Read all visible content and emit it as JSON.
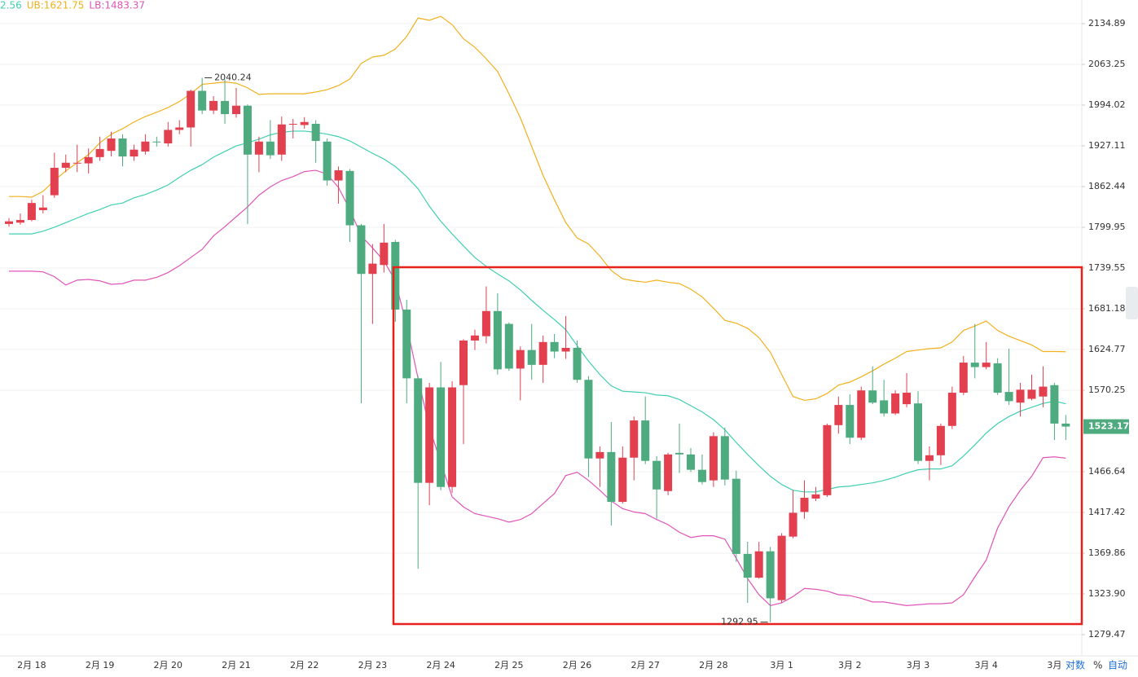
{
  "chart_data": {
    "type": "candlestick",
    "log_y": true,
    "grid": true,
    "up_color": "#e2404f",
    "down_color": "#4dab7f",
    "ylim": [
      1256.96,
      2177.6
    ],
    "yticks": [
      2134.89,
      2063.25,
      1994.02,
      1927.11,
      1862.44,
      1799.95,
      1739.55,
      1681.18,
      1624.77,
      1570.25,
      1466.64,
      1417.42,
      1369.86,
      {
        "value": 1323.9,
        "label": "1323.90"
      },
      1279.47
    ],
    "categories": [
      null,
      null,
      "2月 18",
      null,
      null,
      null,
      null,
      null,
      "2月 19",
      null,
      null,
      null,
      null,
      null,
      "2月 20",
      null,
      null,
      null,
      null,
      null,
      "2月 21",
      null,
      null,
      null,
      null,
      null,
      "2月 22",
      null,
      null,
      null,
      null,
      null,
      "2月 23",
      null,
      null,
      null,
      null,
      null,
      "2月 24",
      null,
      null,
      null,
      null,
      null,
      "2月 25",
      null,
      null,
      null,
      null,
      null,
      "2月 26",
      null,
      null,
      null,
      null,
      null,
      "2月 27",
      null,
      null,
      null,
      null,
      null,
      "2月 28",
      null,
      null,
      null,
      null,
      null,
      "3月 1",
      null,
      null,
      null,
      null,
      null,
      "3月 2",
      null,
      null,
      null,
      null,
      null,
      "3月 3",
      null,
      null,
      null,
      null,
      null,
      "3月 4",
      null,
      null,
      null,
      null,
      null,
      "3月",
      null
    ],
    "open": [
      1805,
      1807,
      1811,
      1826,
      1849,
      1892,
      1899,
      1899,
      1909,
      1919,
      1939,
      1910,
      1918,
      1934,
      1931,
      1953,
      1957,
      2018,
      1985,
      2001,
      1979,
      1993,
      1913,
      1934,
      1913,
      1962,
      1961,
      1963,
      1934,
      1872,
      1887,
      1803,
      1731,
      1744,
      1778,
      1680,
      1586,
      1453,
      1574,
      1448,
      1577,
      1637,
      1643,
      1678,
      1660,
      1599,
      1624,
      1604,
      1635,
      1622,
      1627,
      1584,
      1483,
      1491,
      1430,
      1484,
      1531,
      1480,
      1443,
      1490,
      1488,
      1469,
      1456,
      1511,
      1458,
      1369,
      1342,
      1372,
      1317,
      1389,
      1418,
      1434,
      1438,
      1525,
      1551,
      1509,
      1570,
      1557,
      1540,
      1552,
      1553,
      1480,
      1487,
      1524,
      1567,
      1607,
      1601,
      1606,
      1568,
      1554,
      1559,
      1562,
      1577,
      1527
    ],
    "high": [
      1814,
      1821,
      1842,
      1849,
      1916,
      1913,
      1929,
      1923,
      1942,
      1950,
      1946,
      1929,
      1946,
      1942,
      1966,
      1969,
      2020,
      2040.24,
      2009,
      2037,
      2023,
      1995,
      1942,
      1969,
      1975,
      1971,
      1974,
      1969,
      1939,
      1894,
      1890,
      1805,
      1775,
      1805,
      1781,
      1694,
      1589,
      1580,
      1608,
      1582,
      1639,
      1652,
      1713,
      1703,
      1662,
      1629,
      1660,
      1644,
      1646,
      1671,
      1637,
      1589,
      1498,
      1529,
      1498,
      1536,
      1562,
      1486,
      1490,
      1527,
      1496,
      1488,
      1516,
      1522,
      1468,
      1383,
      1383,
      1377,
      1393,
      1444,
      1456,
      1448,
      1527,
      1562,
      1565,
      1575,
      1602,
      1584,
      1570,
      1593,
      1569,
      1498,
      1527,
      1575,
      1616,
      1660,
      1635,
      1613,
      1626,
      1580,
      1591,
      1602,
      1580,
      1538
    ],
    "low": [
      1801,
      1804,
      1809,
      1821,
      1845,
      1885,
      1885,
      1883,
      1903,
      1910,
      1894,
      1903,
      1913,
      1926,
      1926,
      1946,
      1926,
      1979,
      1979,
      1963,
      1973,
      1805,
      1885,
      1906,
      1903,
      1939,
      1955,
      1900,
      1864,
      1836,
      1778,
      1553,
      1660,
      1733,
      1663,
      1553,
      1352,
      1426,
      1444,
      1441,
      1501,
      1624,
      1633,
      1591,
      1596,
      1557,
      1584,
      1580,
      1613,
      1612,
      1580,
      1460,
      1448,
      1402,
      1428,
      1456,
      1476,
      1410,
      1438,
      1465,
      1466,
      1451,
      1448,
      1450,
      1360,
      1314,
      1341,
      1292.95,
      1314,
      1387,
      1410,
      1431,
      1436,
      1514,
      1501,
      1506,
      1552,
      1536,
      1538,
      1548,
      1476,
      1456,
      1475,
      1520,
      1564,
      1586,
      1598,
      1564,
      1551,
      1536,
      1557,
      1548,
      1506,
      1506
    ],
    "close": [
      1809,
      1811,
      1837,
      1830,
      1892,
      1900,
      1900,
      1909,
      1922,
      1939,
      1910,
      1921,
      1934,
      1933,
      1953,
      1957,
      2018,
      1985,
      2001,
      1979,
      1993,
      1913,
      1934,
      1912,
      1962,
      1963,
      1966,
      1935,
      1872,
      1888,
      1803,
      1731,
      1746,
      1777,
      1680,
      1586,
      1453,
      1574,
      1448,
      1574,
      1637,
      1644,
      1678,
      1598,
      1599,
      1624,
      1604,
      1635,
      1622,
      1627,
      1584,
      1483,
      1491,
      1430,
      1484,
      1531,
      1480,
      1445,
      1488,
      1488,
      1469,
      1454,
      1511,
      1457,
      1369,
      1342,
      1372,
      1319,
      1390,
      1417,
      1435,
      1439,
      1525,
      1551,
      1509,
      1570,
      1554,
      1540,
      1566,
      1567,
      1480,
      1487,
      1524,
      1567,
      1607,
      1601,
      1607,
      1567,
      1556,
      1571,
      1571,
      1575,
      1527,
      1523.17
    ],
    "bands": [
      {
        "label": "2.56",
        "color": "#3fcfb0",
        "values": [
          1790,
          1790,
          1790,
          1794,
          1800,
          1807,
          1814,
          1821,
          1827,
          1834,
          1837,
          1845,
          1850,
          1857,
          1865,
          1877,
          1888,
          1897,
          1909,
          1918,
          1927,
          1932,
          1938,
          1945,
          1949,
          1951,
          1951,
          1949,
          1946,
          1942,
          1935,
          1925,
          1915,
          1906,
          1894,
          1878,
          1859,
          1832,
          1809,
          1790,
          1772,
          1755,
          1742,
          1731,
          1721,
          1708,
          1693,
          1679,
          1666,
          1652,
          1630,
          1609,
          1591,
          1576,
          1569,
          1568,
          1567,
          1564,
          1563,
          1558,
          1550,
          1542,
          1532,
          1519,
          1503,
          1488,
          1474,
          1461,
          1451,
          1444,
          1442,
          1442,
          1445,
          1448,
          1449,
          1451,
          1453,
          1456,
          1460,
          1465,
          1469,
          1470,
          1470,
          1474,
          1486,
          1500,
          1515,
          1527,
          1536,
          1543,
          1548,
          1553,
          1556,
          1552.56
        ]
      },
      {
        "label": "UB:1621.75",
        "color": "#f2b01e",
        "values": [
          1847,
          1847,
          1846,
          1855,
          1872,
          1887,
          1900,
          1913,
          1932,
          1946,
          1955,
          1966,
          1975,
          1982,
          1990,
          2000,
          2013,
          2029,
          2031,
          2033,
          2031,
          2023,
          2012,
          2013,
          2013,
          2013,
          2013,
          2016,
          2020,
          2027,
          2038,
          2065,
          2076,
          2079,
          2090,
          2112,
          2145,
          2141,
          2148,
          2133,
          2108,
          2093,
          2073,
          2051,
          2013,
          1973,
          1926,
          1880,
          1842,
          1807,
          1784,
          1775,
          1757,
          1736,
          1724,
          1721,
          1719,
          1722,
          1719,
          1717,
          1709,
          1698,
          1682,
          1665,
          1661,
          1654,
          1641,
          1621,
          1591,
          1562,
          1557,
          1559,
          1566,
          1577,
          1581,
          1588,
          1596,
          1605,
          1613,
          1622,
          1624,
          1626,
          1627,
          1635,
          1651,
          1657,
          1664,
          1651,
          1643,
          1637,
          1631,
          1622,
          1622,
          1621.75
        ]
      },
      {
        "label": "LB:1483.37",
        "color": "#e055b8",
        "values": [
          1735,
          1735,
          1735,
          1734,
          1727,
          1715,
          1722,
          1723,
          1721,
          1716,
          1717,
          1722,
          1722,
          1726,
          1733,
          1743,
          1755,
          1767,
          1787,
          1801,
          1816,
          1831,
          1849,
          1862,
          1872,
          1878,
          1886,
          1888,
          1882,
          1861,
          1827,
          1787,
          1769,
          1750,
          1721,
          1658,
          1586,
          1522,
          1478,
          1436,
          1424,
          1416,
          1413,
          1410,
          1406,
          1409,
          1416,
          1428,
          1440,
          1462,
          1466,
          1456,
          1444,
          1431,
          1422,
          1418,
          1416,
          1409,
          1403,
          1394,
          1388,
          1390,
          1390,
          1386,
          1364,
          1341,
          1323,
          1311,
          1314,
          1321,
          1330,
          1329,
          1327,
          1323,
          1322,
          1319,
          1315,
          1315,
          1313,
          1311,
          1312,
          1313,
          1313,
          1314,
          1323,
          1343,
          1362,
          1399,
          1424,
          1444,
          1461,
          1484,
          1485,
          1483.37
        ]
      }
    ],
    "max_index": 17,
    "min_index": 67
  },
  "controls": [
    "对数",
    "%",
    "自动"
  ]
}
